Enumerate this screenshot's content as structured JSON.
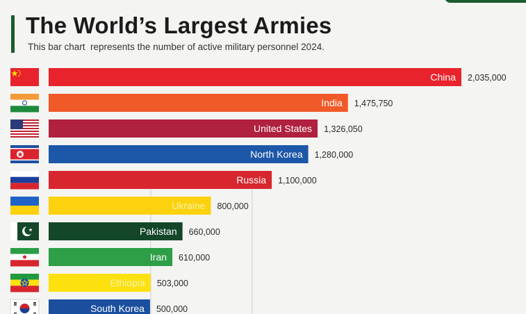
{
  "header": {
    "title": "The World’s Largest Armies",
    "subtitle": "This bar chart  represents the number of active military personnel 2024."
  },
  "chart_data": {
    "type": "bar",
    "orientation": "horizontal",
    "title": "The World’s Largest Armies",
    "subtitle": "This bar chart  represents the number of active military personnel 2024.",
    "xlabel": "",
    "ylabel": "",
    "xlim": [
      0,
      2035000
    ],
    "categories": [
      "China",
      "India",
      "United States",
      "North Korea",
      "Russia",
      "Ukraine",
      "Pakistan",
      "Iran",
      "Ethiopia",
      "South Korea"
    ],
    "values": [
      2035000,
      1475750,
      1326050,
      1280000,
      1100000,
      800000,
      660000,
      610000,
      503000,
      500000
    ],
    "value_labels": [
      "2,035,000",
      "1,475,750",
      "1,326,050",
      "1,280,000",
      "1,100,000",
      "800,000",
      "660,000",
      "610,000",
      "503,000",
      "500,000"
    ],
    "bar_colors": [
      "#e8232c",
      "#f05a28",
      "#b0203f",
      "#1d57a8",
      "#d8262f",
      "#fcd20e",
      "#14472a",
      "#2e9e47",
      "#fce10f",
      "#1b4f9e"
    ],
    "flags": [
      "china-flag",
      "india-flag",
      "usa-flag",
      "north-korea-flag",
      "russia-flag",
      "ukraine-flag",
      "pakistan-flag",
      "iran-flag",
      "ethiopia-flag",
      "south-korea-flag"
    ]
  }
}
